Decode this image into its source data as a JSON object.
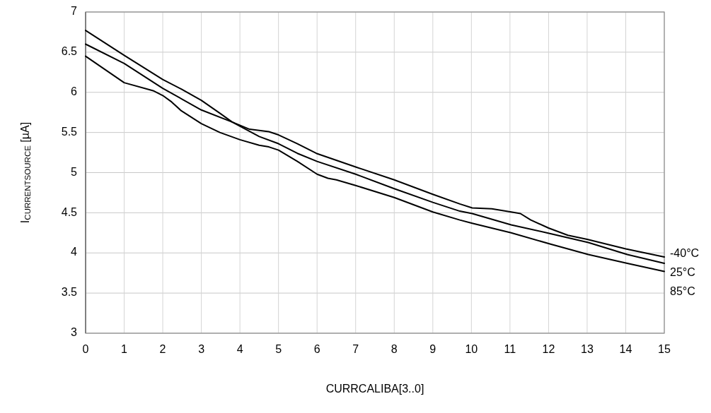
{
  "chart_data": {
    "type": "line",
    "xlabel": "CURRCALIBA[3..0]",
    "ylabel": "I$_{CURRENTSOURCE}$ [µA]",
    "xlim": [
      0,
      15
    ],
    "xticks": [
      0,
      1,
      2,
      3,
      4,
      5,
      6,
      7,
      8,
      9,
      10,
      11,
      12,
      13,
      14,
      15
    ],
    "ylim": [
      3,
      7
    ],
    "yticks": [
      3,
      3.5,
      4,
      4.5,
      5,
      5.5,
      6,
      6.5,
      7
    ],
    "grid": true,
    "legend": false,
    "marker": "none",
    "line_style": "solid",
    "series": [
      {
        "name": "-40°C",
        "color": "#000000",
        "x": [
          0,
          1,
          2,
          3,
          3.8,
          4.25,
          4.75,
          5,
          5.49,
          5.98,
          7,
          8,
          9,
          9.7,
          10.02,
          10.53,
          11.03,
          11.27,
          11.54,
          12,
          12.5,
          13,
          14,
          15
        ],
        "values": [
          6.6,
          6.36,
          6.05,
          5.78,
          5.63,
          5.54,
          5.51,
          5.47,
          5.36,
          5.24,
          5.07,
          4.91,
          4.73,
          4.61,
          4.56,
          4.55,
          4.51,
          4.49,
          4.41,
          4.31,
          4.22,
          4.17,
          4.05,
          3.95
        ]
      },
      {
        "name": "25°C",
        "color": "#000000",
        "x": [
          0,
          1,
          2,
          2.48,
          3,
          3.48,
          3.8,
          4.5,
          5,
          5.49,
          6,
          7,
          8,
          9,
          9.7,
          10.02,
          11.03,
          12.05,
          13.03,
          14.04,
          15
        ],
        "values": [
          6.77,
          6.46,
          6.16,
          6.04,
          5.9,
          5.74,
          5.63,
          5.45,
          5.36,
          5.24,
          5.14,
          4.98,
          4.8,
          4.63,
          4.52,
          4.49,
          4.35,
          4.24,
          4.13,
          3.98,
          3.87
        ]
      },
      {
        "name": "85°C",
        "color": "#000000",
        "x": [
          0,
          1,
          1.75,
          2,
          2.23,
          2.48,
          3,
          3.48,
          4,
          4.5,
          4.75,
          5,
          5.49,
          6,
          6.28,
          6.5,
          7,
          8,
          9,
          9.7,
          10.02,
          11.03,
          12.05,
          13.03,
          14.04,
          15
        ],
        "values": [
          6.45,
          6.12,
          6.02,
          5.96,
          5.88,
          5.77,
          5.61,
          5.5,
          5.41,
          5.34,
          5.32,
          5.28,
          5.14,
          4.98,
          4.93,
          4.91,
          4.84,
          4.69,
          4.51,
          4.41,
          4.37,
          4.25,
          4.11,
          3.98,
          3.87,
          3.77
        ]
      }
    ]
  }
}
